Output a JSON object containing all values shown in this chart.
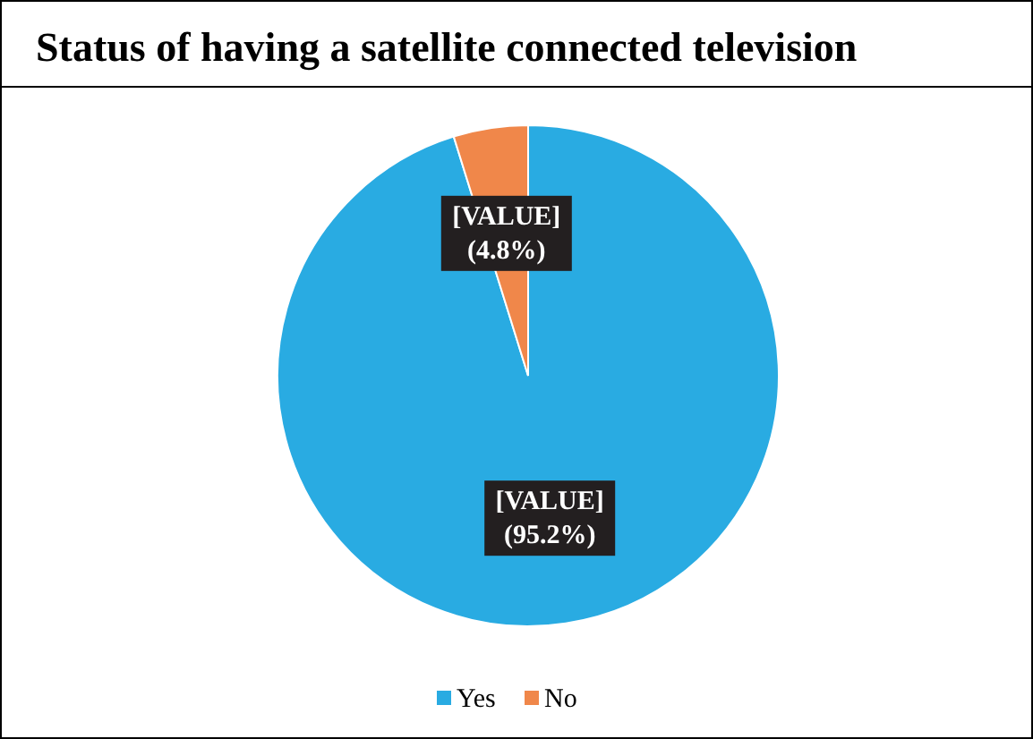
{
  "chart_data": {
    "type": "pie",
    "title": "Status of having a satellite connected television",
    "categories": [
      "Yes",
      "No"
    ],
    "values": [
      95.2,
      4.8
    ],
    "colors": [
      "#29abe2",
      "#f0874a"
    ],
    "value_labels": [
      "[VALUE]\n(95.2%)",
      "[VALUE]\n(4.8%)"
    ],
    "legend": "bottom"
  }
}
